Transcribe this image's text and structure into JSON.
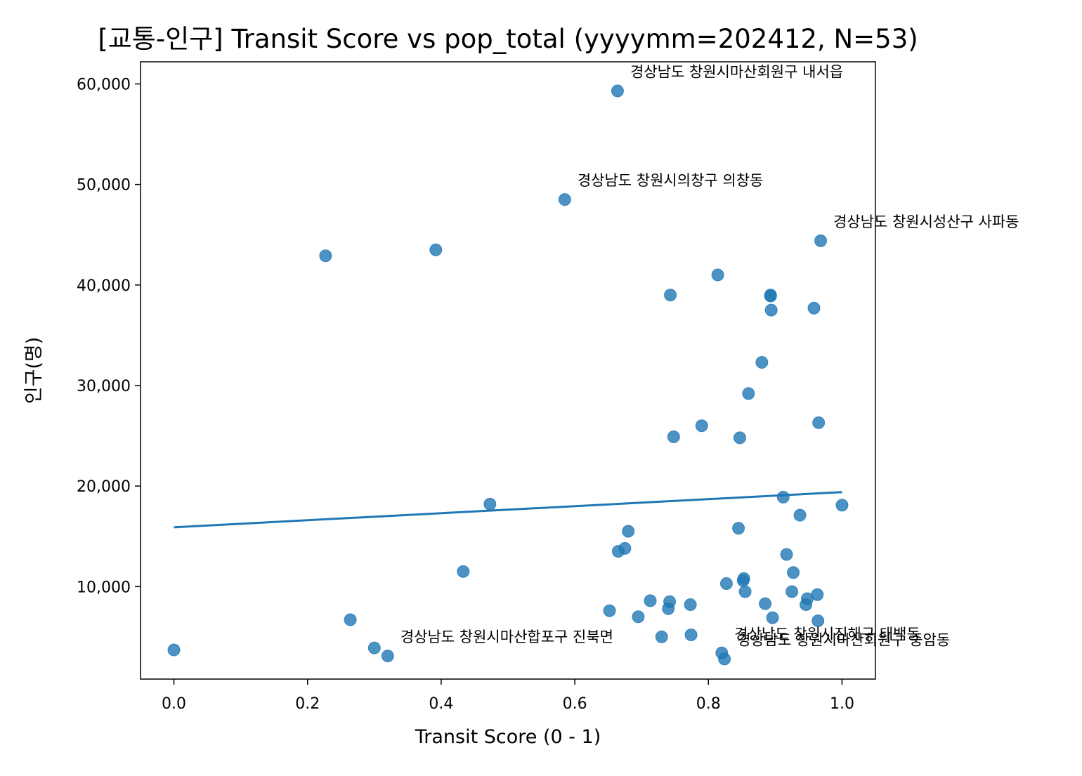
{
  "chart_data": {
    "type": "scatter",
    "title": "[교통-인구] Transit Score vs pop_total (yyyymm=202412, N=53)",
    "xlabel": "Transit Score (0 - 1)",
    "ylabel": "인구(명)",
    "xlim": [
      -0.05,
      1.05
    ],
    "ylim": [
      800,
      62200
    ],
    "x_ticks": [
      0.0,
      0.2,
      0.4,
      0.6,
      0.8,
      1.0
    ],
    "x_tick_labels": [
      "0.0",
      "0.2",
      "0.4",
      "0.6",
      "0.8",
      "1.0"
    ],
    "y_ticks": [
      10000,
      20000,
      30000,
      40000,
      50000,
      60000
    ],
    "y_tick_labels": [
      "10,000",
      "20,000",
      "30,000",
      "40,000",
      "50,000",
      "60,000"
    ],
    "grid": false,
    "colors": {
      "points": "#1f77b4",
      "fit_line": "#1f77b4"
    },
    "series": [
      {
        "points": [
          [
            0.0,
            3700
          ],
          [
            0.227,
            42900
          ],
          [
            0.264,
            6700
          ],
          [
            0.3,
            3900
          ],
          [
            0.32,
            3100
          ],
          [
            0.392,
            43500
          ],
          [
            0.433,
            11500
          ],
          [
            0.473,
            18200
          ],
          [
            0.585,
            48500
          ],
          [
            0.652,
            7600
          ],
          [
            0.664,
            59300
          ],
          [
            0.665,
            13500
          ],
          [
            0.675,
            13800
          ],
          [
            0.68,
            15500
          ],
          [
            0.695,
            7000
          ],
          [
            0.713,
            8600
          ],
          [
            0.73,
            5000
          ],
          [
            0.74,
            7800
          ],
          [
            0.742,
            8500
          ],
          [
            0.743,
            39000
          ],
          [
            0.748,
            24900
          ],
          [
            0.773,
            8200
          ],
          [
            0.774,
            5200
          ],
          [
            0.79,
            26000
          ],
          [
            0.814,
            41000
          ],
          [
            0.82,
            3400
          ],
          [
            0.824,
            2800
          ],
          [
            0.827,
            10300
          ],
          [
            0.845,
            15800
          ],
          [
            0.847,
            24800
          ],
          [
            0.852,
            10600
          ],
          [
            0.853,
            10800
          ],
          [
            0.855,
            9500
          ],
          [
            0.86,
            29200
          ],
          [
            0.88,
            32300
          ],
          [
            0.885,
            8300
          ],
          [
            0.893,
            39000
          ],
          [
            0.893,
            38900
          ],
          [
            0.894,
            37500
          ],
          [
            0.896,
            6900
          ],
          [
            0.912,
            18900
          ],
          [
            0.917,
            13200
          ],
          [
            0.925,
            9500
          ],
          [
            0.927,
            11400
          ],
          [
            0.937,
            17100
          ],
          [
            0.946,
            8200
          ],
          [
            0.948,
            8800
          ],
          [
            0.958,
            37700
          ],
          [
            0.963,
            9200
          ],
          [
            0.964,
            6600
          ],
          [
            0.965,
            26300
          ],
          [
            0.968,
            44400
          ],
          [
            1.0,
            18100
          ]
        ]
      }
    ],
    "fit_line": {
      "x": [
        0.0,
        1.0
      ],
      "y": [
        15900,
        19400
      ]
    },
    "annotations": [
      {
        "text": "경상남도 창원시마산회원구 내서읍",
        "x": 0.664,
        "y": 59300
      },
      {
        "text": "경상남도 창원시의창구 의창동",
        "x": 0.585,
        "y": 48500
      },
      {
        "text": "경상남도 창원시성산구 사파동",
        "x": 0.968,
        "y": 44400
      },
      {
        "text": "경상남도 창원시마산합포구 진북면",
        "x": 0.32,
        "y": 3100
      },
      {
        "text": "경상남도 창원시진해구 태백동",
        "x": 0.82,
        "y": 3400
      },
      {
        "text": "경상남도 창원시마산회원구 중암동",
        "x": 0.824,
        "y": 2800
      }
    ]
  }
}
